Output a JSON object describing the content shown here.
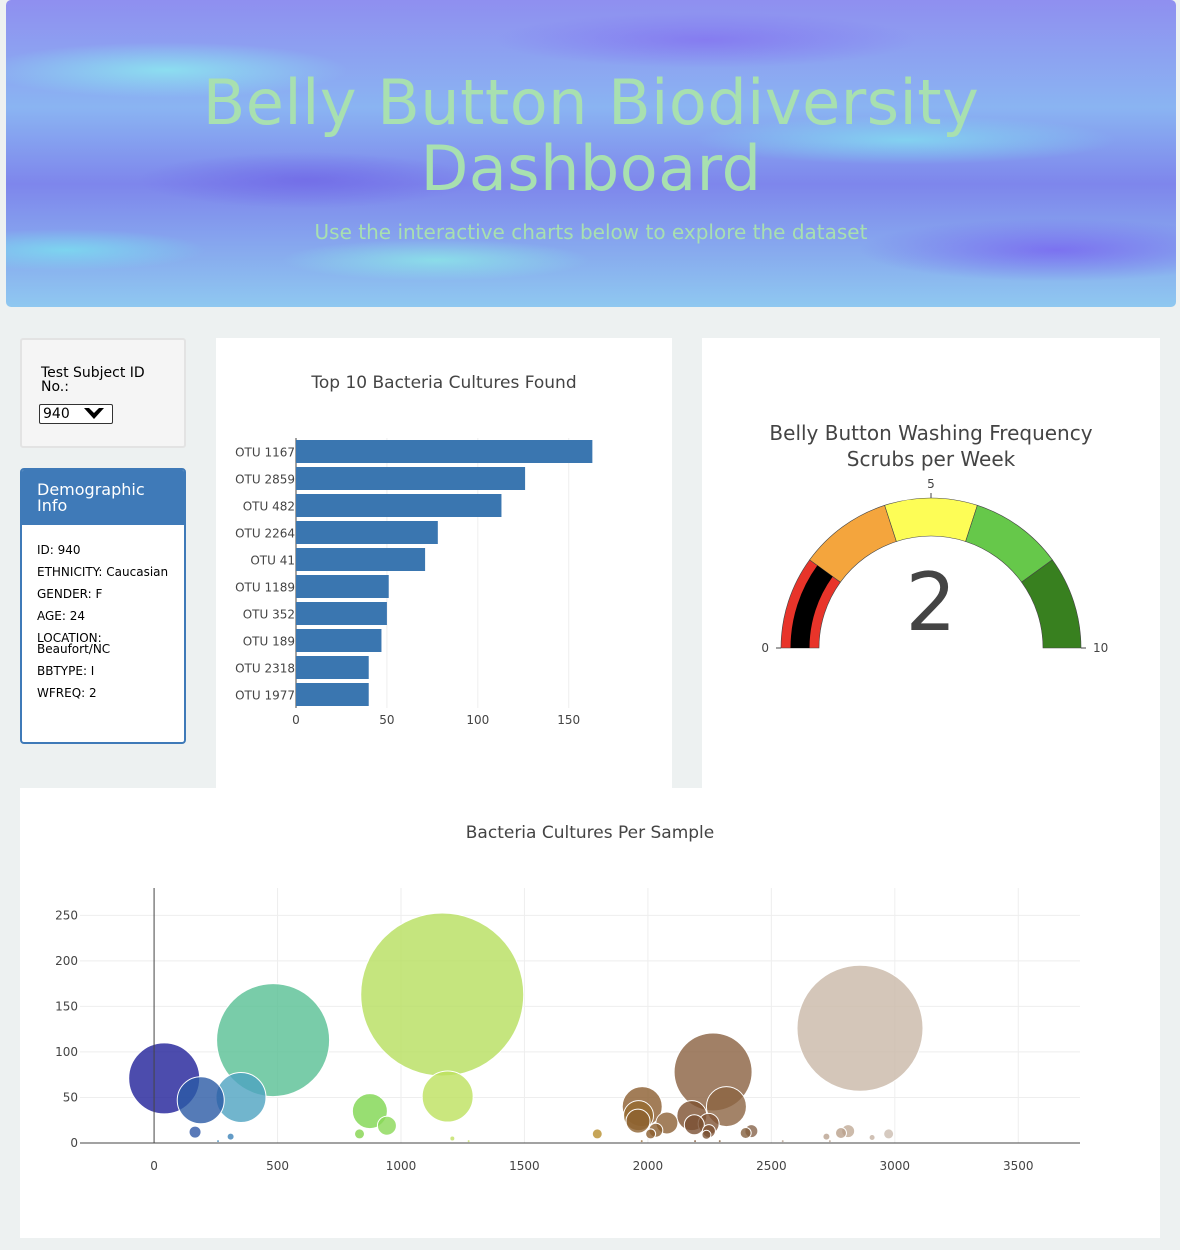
{
  "header": {
    "title_line1": "Belly Button Biodiversity",
    "title_line2": "Dashboard",
    "subtitle": "Use the interactive charts below to explore the dataset"
  },
  "selector": {
    "label": "Test Subject ID No.:",
    "selected": "940"
  },
  "demographics": {
    "title": "Demographic Info",
    "rows": [
      "ID: 940",
      "ETHNICITY: Caucasian",
      "GENDER: F",
      "AGE: 24",
      "LOCATION: Beaufort/NC",
      "BBTYPE: I",
      "WFREQ: 2"
    ]
  },
  "chart_data": [
    {
      "type": "bar",
      "orientation": "horizontal",
      "title": "Top 10 Bacteria Cultures Found",
      "categories": [
        "OTU 1167",
        "OTU 2859",
        "OTU 482",
        "OTU 2264",
        "OTU 41",
        "OTU 1189",
        "OTU 352",
        "OTU 189",
        "OTU 2318",
        "OTU 1977"
      ],
      "values": [
        163,
        126,
        113,
        78,
        71,
        51,
        50,
        47,
        40,
        40
      ],
      "xlim": [
        0,
        165
      ],
      "xticks": [
        0,
        50,
        100,
        150
      ],
      "color": "#3a76b0"
    },
    {
      "type": "gauge",
      "title": "Belly Button Washing Frequency",
      "subtitle": "Scrubs per Week",
      "value": 2,
      "range": [
        0,
        10
      ],
      "ticks": [
        0,
        5,
        10
      ],
      "steps": [
        {
          "range": [
            0,
            2
          ],
          "color": "#e8342a"
        },
        {
          "range": [
            2,
            4
          ],
          "color": "#f4a53d"
        },
        {
          "range": [
            4,
            6
          ],
          "color": "#fdfd56"
        },
        {
          "range": [
            6,
            8
          ],
          "color": "#66c84a"
        },
        {
          "range": [
            8,
            10
          ],
          "color": "#38801f"
        }
      ],
      "bar_color": "#000000"
    },
    {
      "type": "scatter",
      "subtype": "bubble",
      "title": "Bacteria Cultures Per Sample",
      "xlim": [
        -300,
        3750
      ],
      "ylim": [
        0,
        280
      ],
      "xticks": [
        0,
        500,
        1000,
        1500,
        2000,
        2500,
        3000,
        3500
      ],
      "yticks": [
        0,
        50,
        100,
        150,
        200,
        250
      ],
      "points": [
        {
          "x": 41,
          "y": 71,
          "c": "#1f1f99"
        },
        {
          "x": 189,
          "y": 47,
          "c": "#2a5aa5"
        },
        {
          "x": 352,
          "y": 50,
          "c": "#4da2c0"
        },
        {
          "x": 482,
          "y": 113,
          "c": "#57bf93"
        },
        {
          "x": 166,
          "y": 12,
          "c": "#3057a6"
        },
        {
          "x": 310,
          "y": 7,
          "c": "#3c82b8"
        },
        {
          "x": 874,
          "y": 35,
          "c": "#7ed64f"
        },
        {
          "x": 943,
          "y": 19,
          "c": "#8ad856"
        },
        {
          "x": 832,
          "y": 10,
          "c": "#83d34e"
        },
        {
          "x": 1167,
          "y": 163,
          "c": "#b7df5e"
        },
        {
          "x": 1189,
          "y": 51,
          "c": "#bde15e"
        },
        {
          "x": 1795,
          "y": 10,
          "c": "#b88f2e"
        },
        {
          "x": 1977,
          "y": 40,
          "c": "#8b5d2e"
        },
        {
          "x": 1962,
          "y": 30,
          "c": "#966a30"
        },
        {
          "x": 1960,
          "y": 24,
          "c": "#8d6230"
        },
        {
          "x": 2011,
          "y": 10,
          "c": "#8b5e2e"
        },
        {
          "x": 2032,
          "y": 14,
          "c": "#875c2e"
        },
        {
          "x": 2077,
          "y": 22,
          "c": "#8c6034"
        },
        {
          "x": 2178,
          "y": 30,
          "c": "#7d5030"
        },
        {
          "x": 2188,
          "y": 20,
          "c": "#7a5033"
        },
        {
          "x": 2246,
          "y": 21,
          "c": "#7f5233"
        },
        {
          "x": 2264,
          "y": 78,
          "c": "#8a6040"
        },
        {
          "x": 2318,
          "y": 40,
          "c": "#8c6442"
        },
        {
          "x": 2247,
          "y": 13,
          "c": "#7e5436"
        },
        {
          "x": 2237,
          "y": 9,
          "c": "#7b5334"
        },
        {
          "x": 2396,
          "y": 11,
          "c": "#84603f"
        },
        {
          "x": 2419,
          "y": 13,
          "c": "#87644b"
        },
        {
          "x": 2859,
          "y": 126,
          "c": "#c9b8a7"
        },
        {
          "x": 2723,
          "y": 7,
          "c": "#b9a18e"
        },
        {
          "x": 2782,
          "y": 11,
          "c": "#b9a08b"
        },
        {
          "x": 2811,
          "y": 13,
          "c": "#c0aa96"
        },
        {
          "x": 2908,
          "y": 6,
          "c": "#c4b2a3"
        },
        {
          "x": 2975,
          "y": 10,
          "c": "#ccbdb0"
        },
        {
          "x": 259,
          "y": 2,
          "c": "#4a8fbf"
        },
        {
          "x": 1208,
          "y": 5,
          "c": "#c0e062"
        },
        {
          "x": 1274,
          "y": 2,
          "c": "#c5e066"
        },
        {
          "x": 1975,
          "y": 2,
          "c": "#9a7040"
        },
        {
          "x": 2191,
          "y": 2,
          "c": "#7f5538"
        },
        {
          "x": 2291,
          "y": 2,
          "c": "#866040"
        },
        {
          "x": 2546,
          "y": 2,
          "c": "#b5a08f"
        },
        {
          "x": 2737,
          "y": 2,
          "c": "#bca592"
        }
      ]
    }
  ]
}
